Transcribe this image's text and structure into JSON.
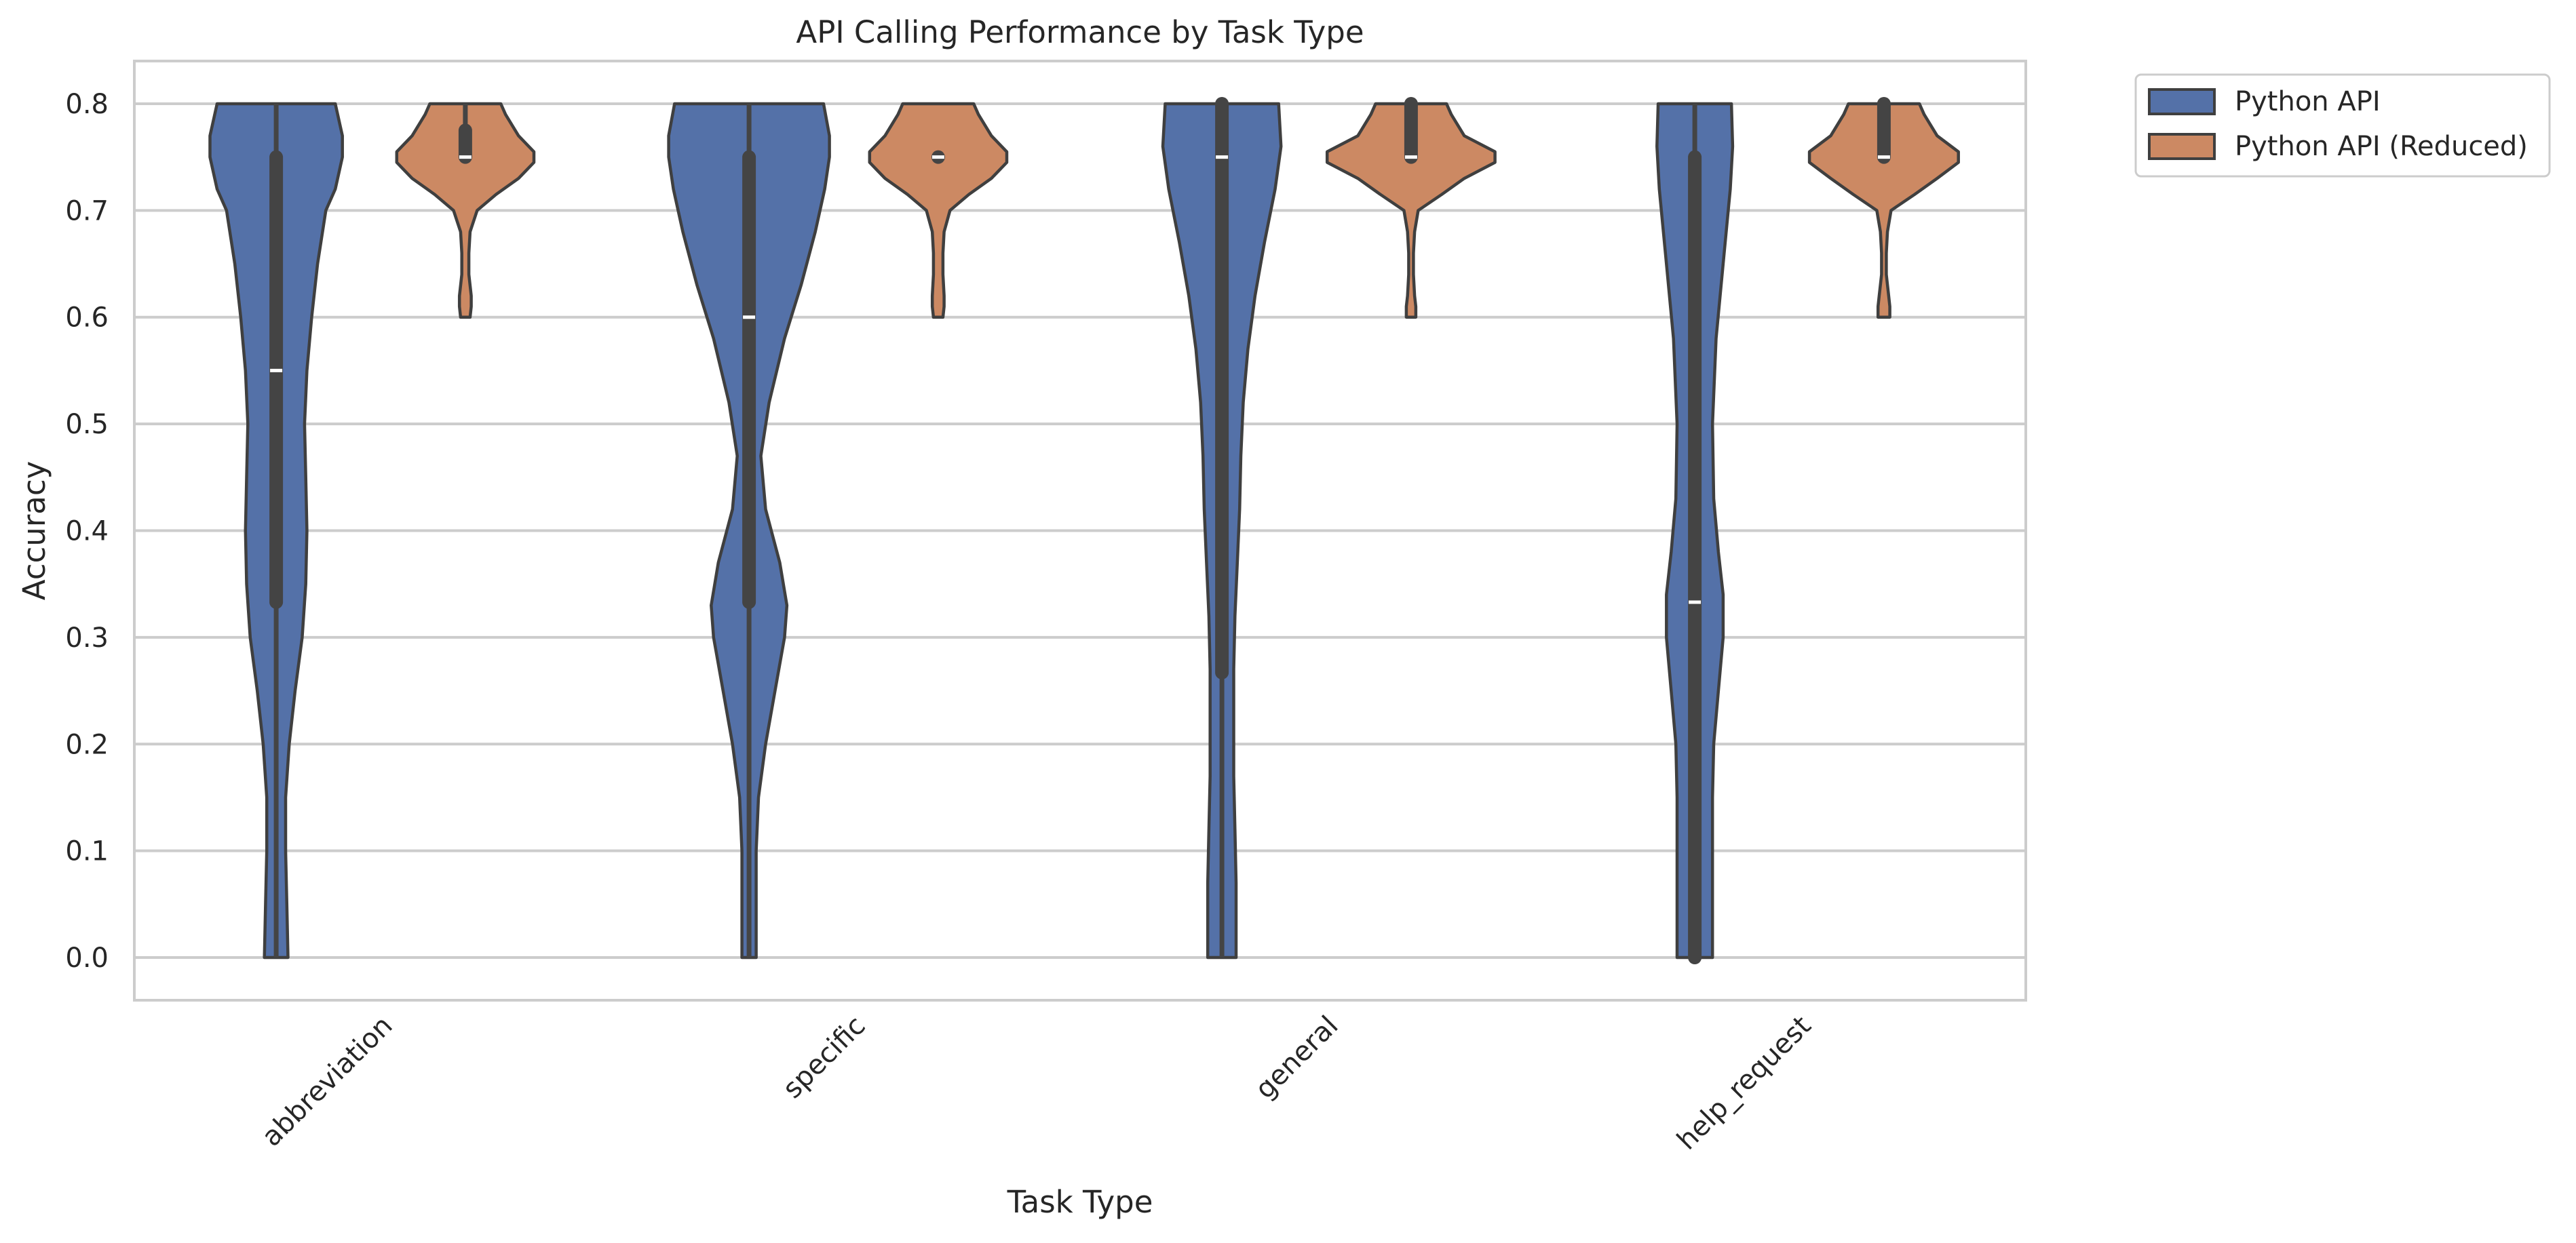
{
  "chart_data": {
    "type": "violin",
    "title": "API Calling Performance by Task Type",
    "xlabel": "Task Type",
    "ylabel": "Accuracy",
    "ylim": [
      -0.04,
      0.84
    ],
    "yticks": [
      0.0,
      0.1,
      0.2,
      0.3,
      0.4,
      0.5,
      0.6,
      0.7,
      0.8
    ],
    "ytick_labels": [
      "0.0",
      "0.1",
      "0.2",
      "0.3",
      "0.4",
      "0.5",
      "0.6",
      "0.7",
      "0.8"
    ],
    "categories": [
      "abbreviation",
      "specific",
      "general",
      "help_request"
    ],
    "grid": "horizontal",
    "legend_position": "outside top-right",
    "series": [
      {
        "name": "Python API",
        "color": "#5471a8",
        "violins": [
          {
            "profile": [
              [
                0.8,
                0.5
              ],
              [
                0.77,
                0.56
              ],
              [
                0.75,
                0.56
              ],
              [
                0.72,
                0.5
              ],
              [
                0.7,
                0.42
              ],
              [
                0.65,
                0.35
              ],
              [
                0.6,
                0.3
              ],
              [
                0.55,
                0.26
              ],
              [
                0.5,
                0.24
              ],
              [
                0.45,
                0.25
              ],
              [
                0.4,
                0.26
              ],
              [
                0.35,
                0.25
              ],
              [
                0.3,
                0.22
              ],
              [
                0.25,
                0.16
              ],
              [
                0.2,
                0.11
              ],
              [
                0.15,
                0.08
              ],
              [
                0.1,
                0.08
              ],
              [
                0.05,
                0.09
              ],
              [
                0.0,
                0.1
              ]
            ],
            "q1": 0.333,
            "median": 0.55,
            "q3": 0.75,
            "whisker_low": 0.0,
            "whisker_high": 0.8
          },
          {
            "profile": [
              [
                0.8,
                0.63
              ],
              [
                0.77,
                0.68
              ],
              [
                0.75,
                0.68
              ],
              [
                0.72,
                0.64
              ],
              [
                0.68,
                0.56
              ],
              [
                0.63,
                0.44
              ],
              [
                0.58,
                0.3
              ],
              [
                0.52,
                0.17
              ],
              [
                0.47,
                0.1
              ],
              [
                0.42,
                0.14
              ],
              [
                0.37,
                0.26
              ],
              [
                0.33,
                0.32
              ],
              [
                0.3,
                0.3
              ],
              [
                0.25,
                0.22
              ],
              [
                0.2,
                0.14
              ],
              [
                0.15,
                0.08
              ],
              [
                0.1,
                0.06
              ],
              [
                0.05,
                0.06
              ],
              [
                0.0,
                0.06
              ]
            ],
            "q1": 0.333,
            "median": 0.6,
            "q3": 0.75,
            "whisker_low": 0.0,
            "whisker_high": 0.8
          },
          {
            "profile": [
              [
                0.8,
                0.48
              ],
              [
                0.76,
                0.5
              ],
              [
                0.72,
                0.45
              ],
              [
                0.67,
                0.36
              ],
              [
                0.62,
                0.28
              ],
              [
                0.57,
                0.22
              ],
              [
                0.52,
                0.18
              ],
              [
                0.47,
                0.16
              ],
              [
                0.42,
                0.15
              ],
              [
                0.37,
                0.13
              ],
              [
                0.32,
                0.11
              ],
              [
                0.27,
                0.1
              ],
              [
                0.22,
                0.1
              ],
              [
                0.17,
                0.1
              ],
              [
                0.12,
                0.11
              ],
              [
                0.07,
                0.12
              ],
              [
                0.03,
                0.12
              ],
              [
                0.0,
                0.12
              ]
            ],
            "q1": 0.267,
            "median": 0.75,
            "q3": 0.8,
            "whisker_low": 0.0,
            "whisker_high": 0.8
          },
          {
            "profile": [
              [
                0.8,
                0.31
              ],
              [
                0.76,
                0.32
              ],
              [
                0.72,
                0.3
              ],
              [
                0.65,
                0.24
              ],
              [
                0.58,
                0.18
              ],
              [
                0.5,
                0.15
              ],
              [
                0.43,
                0.16
              ],
              [
                0.38,
                0.2
              ],
              [
                0.34,
                0.24
              ],
              [
                0.3,
                0.24
              ],
              [
                0.25,
                0.2
              ],
              [
                0.2,
                0.16
              ],
              [
                0.15,
                0.15
              ],
              [
                0.1,
                0.15
              ],
              [
                0.05,
                0.15
              ],
              [
                0.0,
                0.15
              ]
            ],
            "q1": 0.0,
            "median": 0.333,
            "q3": 0.75,
            "whisker_low": 0.0,
            "whisker_high": 0.8
          }
        ]
      },
      {
        "name": "Python API (Reduced)",
        "color": "#cc8963",
        "violins": [
          {
            "profile": [
              [
                0.8,
                0.3
              ],
              [
                0.79,
                0.34
              ],
              [
                0.77,
                0.45
              ],
              [
                0.755,
                0.58
              ],
              [
                0.745,
                0.58
              ],
              [
                0.73,
                0.45
              ],
              [
                0.715,
                0.26
              ],
              [
                0.7,
                0.1
              ],
              [
                0.68,
                0.04
              ],
              [
                0.66,
                0.03
              ],
              [
                0.64,
                0.03
              ],
              [
                0.62,
                0.05
              ],
              [
                0.61,
                0.05
              ],
              [
                0.6,
                0.04
              ]
            ],
            "q1": 0.75,
            "median": 0.75,
            "q3": 0.775,
            "whisker_low": 0.75,
            "whisker_high": 0.8
          },
          {
            "profile": [
              [
                0.8,
                0.3
              ],
              [
                0.79,
                0.34
              ],
              [
                0.77,
                0.45
              ],
              [
                0.755,
                0.58
              ],
              [
                0.745,
                0.58
              ],
              [
                0.73,
                0.45
              ],
              [
                0.715,
                0.26
              ],
              [
                0.7,
                0.1
              ],
              [
                0.68,
                0.05
              ],
              [
                0.66,
                0.04
              ],
              [
                0.64,
                0.04
              ],
              [
                0.62,
                0.05
              ],
              [
                0.61,
                0.05
              ],
              [
                0.6,
                0.04
              ]
            ],
            "q1": 0.75,
            "median": 0.75,
            "q3": 0.75,
            "whisker_low": 0.75,
            "whisker_high": 0.75
          },
          {
            "profile": [
              [
                0.8,
                0.3
              ],
              [
                0.79,
                0.34
              ],
              [
                0.77,
                0.45
              ],
              [
                0.755,
                0.71
              ],
              [
                0.745,
                0.71
              ],
              [
                0.73,
                0.45
              ],
              [
                0.715,
                0.26
              ],
              [
                0.7,
                0.06
              ],
              [
                0.68,
                0.03
              ],
              [
                0.66,
                0.02
              ],
              [
                0.64,
                0.02
              ],
              [
                0.62,
                0.03
              ],
              [
                0.61,
                0.04
              ],
              [
                0.6,
                0.04
              ]
            ],
            "q1": 0.75,
            "median": 0.75,
            "q3": 0.8,
            "whisker_low": 0.75,
            "whisker_high": 0.8
          },
          {
            "profile": [
              [
                0.8,
                0.3
              ],
              [
                0.79,
                0.34
              ],
              [
                0.77,
                0.45
              ],
              [
                0.755,
                0.63
              ],
              [
                0.745,
                0.63
              ],
              [
                0.73,
                0.45
              ],
              [
                0.715,
                0.26
              ],
              [
                0.7,
                0.06
              ],
              [
                0.68,
                0.03
              ],
              [
                0.66,
                0.02
              ],
              [
                0.64,
                0.02
              ],
              [
                0.62,
                0.04
              ],
              [
                0.61,
                0.05
              ],
              [
                0.6,
                0.05
              ]
            ],
            "q1": 0.75,
            "median": 0.75,
            "q3": 0.8,
            "whisker_low": 0.75,
            "whisker_high": 0.8
          }
        ]
      }
    ]
  }
}
